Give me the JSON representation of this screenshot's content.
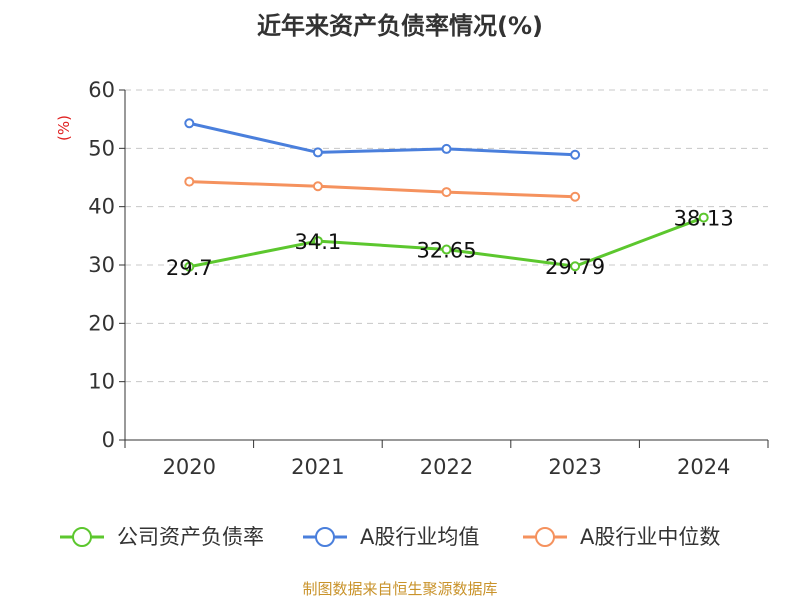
{
  "chart_data": {
    "type": "line",
    "title": "近年来资产负债率情况(%)",
    "ylabel": "(%)",
    "xlabel": "",
    "categories": [
      "2020",
      "2021",
      "2022",
      "2023",
      "2024"
    ],
    "ylim": [
      0,
      60
    ],
    "yticks": [
      0,
      10,
      20,
      30,
      40,
      50,
      60
    ],
    "grid": true,
    "legend_position": "bottom",
    "series": [
      {
        "name": "公司资产负债率",
        "color": "#5cc72e",
        "values": [
          29.7,
          34.1,
          32.65,
          29.79,
          38.13
        ],
        "labels": [
          "29.7",
          "34.1",
          "32.65",
          "29.79",
          "38.13"
        ]
      },
      {
        "name": "A股行业均值",
        "color": "#4a7fdc",
        "values": [
          54.3,
          49.3,
          49.9,
          48.9,
          null
        ]
      },
      {
        "name": "A股行业中位数",
        "color": "#f5925e",
        "values": [
          44.3,
          43.5,
          42.5,
          41.7,
          null
        ]
      }
    ]
  },
  "source": "制图数据来自恒生聚源数据库"
}
